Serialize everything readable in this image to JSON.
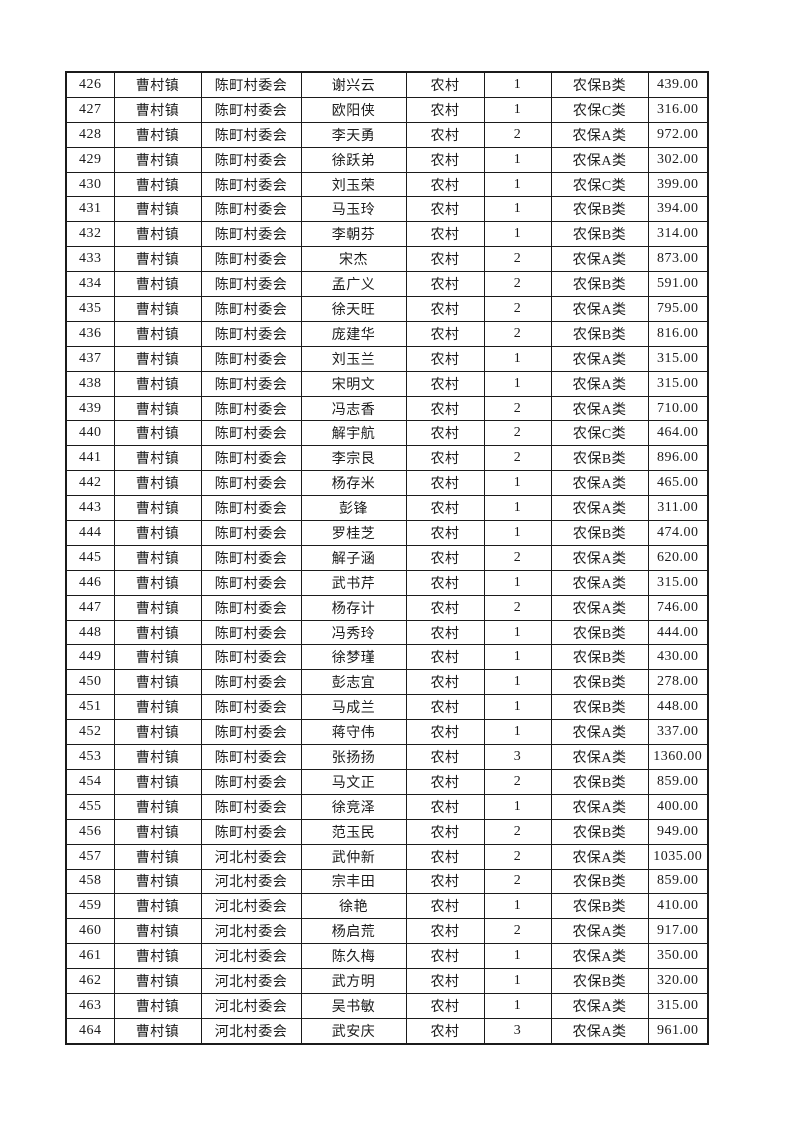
{
  "page": {
    "background_color": "#ffffff",
    "text_color": "#1b1b1b",
    "border_color": "#1b1b1b"
  },
  "table": {
    "columns": [
      {
        "name": "seq"
      },
      {
        "name": "town"
      },
      {
        "name": "village-committee"
      },
      {
        "name": "person-name"
      },
      {
        "name": "residence-type"
      },
      {
        "name": "person-count"
      },
      {
        "name": "insurance-category"
      },
      {
        "name": "amount"
      }
    ],
    "rows": [
      [
        "426",
        "曹村镇",
        "陈町村委会",
        "谢兴云",
        "农村",
        "1",
        "农保B类",
        "439.00"
      ],
      [
        "427",
        "曹村镇",
        "陈町村委会",
        "欧阳侠",
        "农村",
        "1",
        "农保C类",
        "316.00"
      ],
      [
        "428",
        "曹村镇",
        "陈町村委会",
        "李天勇",
        "农村",
        "2",
        "农保A类",
        "972.00"
      ],
      [
        "429",
        "曹村镇",
        "陈町村委会",
        "徐跃弟",
        "农村",
        "1",
        "农保A类",
        "302.00"
      ],
      [
        "430",
        "曹村镇",
        "陈町村委会",
        "刘玉荣",
        "农村",
        "1",
        "农保C类",
        "399.00"
      ],
      [
        "431",
        "曹村镇",
        "陈町村委会",
        "马玉玲",
        "农村",
        "1",
        "农保B类",
        "394.00"
      ],
      [
        "432",
        "曹村镇",
        "陈町村委会",
        "李朝芬",
        "农村",
        "1",
        "农保B类",
        "314.00"
      ],
      [
        "433",
        "曹村镇",
        "陈町村委会",
        "宋杰",
        "农村",
        "2",
        "农保A类",
        "873.00"
      ],
      [
        "434",
        "曹村镇",
        "陈町村委会",
        "孟广义",
        "农村",
        "2",
        "农保B类",
        "591.00"
      ],
      [
        "435",
        "曹村镇",
        "陈町村委会",
        "徐天旺",
        "农村",
        "2",
        "农保A类",
        "795.00"
      ],
      [
        "436",
        "曹村镇",
        "陈町村委会",
        "庞建华",
        "农村",
        "2",
        "农保B类",
        "816.00"
      ],
      [
        "437",
        "曹村镇",
        "陈町村委会",
        "刘玉兰",
        "农村",
        "1",
        "农保A类",
        "315.00"
      ],
      [
        "438",
        "曹村镇",
        "陈町村委会",
        "宋明文",
        "农村",
        "1",
        "农保A类",
        "315.00"
      ],
      [
        "439",
        "曹村镇",
        "陈町村委会",
        "冯志香",
        "农村",
        "2",
        "农保A类",
        "710.00"
      ],
      [
        "440",
        "曹村镇",
        "陈町村委会",
        "解宇航",
        "农村",
        "2",
        "农保C类",
        "464.00"
      ],
      [
        "441",
        "曹村镇",
        "陈町村委会",
        "李宗艮",
        "农村",
        "2",
        "农保B类",
        "896.00"
      ],
      [
        "442",
        "曹村镇",
        "陈町村委会",
        "杨存米",
        "农村",
        "1",
        "农保A类",
        "465.00"
      ],
      [
        "443",
        "曹村镇",
        "陈町村委会",
        "彭锋",
        "农村",
        "1",
        "农保A类",
        "311.00"
      ],
      [
        "444",
        "曹村镇",
        "陈町村委会",
        "罗桂芝",
        "农村",
        "1",
        "农保B类",
        "474.00"
      ],
      [
        "445",
        "曹村镇",
        "陈町村委会",
        "解子涵",
        "农村",
        "2",
        "农保A类",
        "620.00"
      ],
      [
        "446",
        "曹村镇",
        "陈町村委会",
        "武书芹",
        "农村",
        "1",
        "农保A类",
        "315.00"
      ],
      [
        "447",
        "曹村镇",
        "陈町村委会",
        "杨存计",
        "农村",
        "2",
        "农保A类",
        "746.00"
      ],
      [
        "448",
        "曹村镇",
        "陈町村委会",
        "冯秀玲",
        "农村",
        "1",
        "农保B类",
        "444.00"
      ],
      [
        "449",
        "曹村镇",
        "陈町村委会",
        "徐梦瑾",
        "农村",
        "1",
        "农保B类",
        "430.00"
      ],
      [
        "450",
        "曹村镇",
        "陈町村委会",
        "彭志宜",
        "农村",
        "1",
        "农保B类",
        "278.00"
      ],
      [
        "451",
        "曹村镇",
        "陈町村委会",
        "马成兰",
        "农村",
        "1",
        "农保B类",
        "448.00"
      ],
      [
        "452",
        "曹村镇",
        "陈町村委会",
        "蒋守伟",
        "农村",
        "1",
        "农保A类",
        "337.00"
      ],
      [
        "453",
        "曹村镇",
        "陈町村委会",
        "张扬扬",
        "农村",
        "3",
        "农保A类",
        "1360.00"
      ],
      [
        "454",
        "曹村镇",
        "陈町村委会",
        "马文正",
        "农村",
        "2",
        "农保B类",
        "859.00"
      ],
      [
        "455",
        "曹村镇",
        "陈町村委会",
        "徐竞泽",
        "农村",
        "1",
        "农保A类",
        "400.00"
      ],
      [
        "456",
        "曹村镇",
        "陈町村委会",
        "范玉民",
        "农村",
        "2",
        "农保B类",
        "949.00"
      ],
      [
        "457",
        "曹村镇",
        "河北村委会",
        "武仲新",
        "农村",
        "2",
        "农保A类",
        "1035.00"
      ],
      [
        "458",
        "曹村镇",
        "河北村委会",
        "宗丰田",
        "农村",
        "2",
        "农保B类",
        "859.00"
      ],
      [
        "459",
        "曹村镇",
        "河北村委会",
        "徐艳",
        "农村",
        "1",
        "农保B类",
        "410.00"
      ],
      [
        "460",
        "曹村镇",
        "河北村委会",
        "杨启荒",
        "农村",
        "2",
        "农保A类",
        "917.00"
      ],
      [
        "461",
        "曹村镇",
        "河北村委会",
        "陈久梅",
        "农村",
        "1",
        "农保A类",
        "350.00"
      ],
      [
        "462",
        "曹村镇",
        "河北村委会",
        "武方明",
        "农村",
        "1",
        "农保B类",
        "320.00"
      ],
      [
        "463",
        "曹村镇",
        "河北村委会",
        "吴书敏",
        "农村",
        "1",
        "农保A类",
        "315.00"
      ],
      [
        "464",
        "曹村镇",
        "河北村委会",
        "武安庆",
        "农村",
        "3",
        "农保A类",
        "961.00"
      ]
    ]
  }
}
